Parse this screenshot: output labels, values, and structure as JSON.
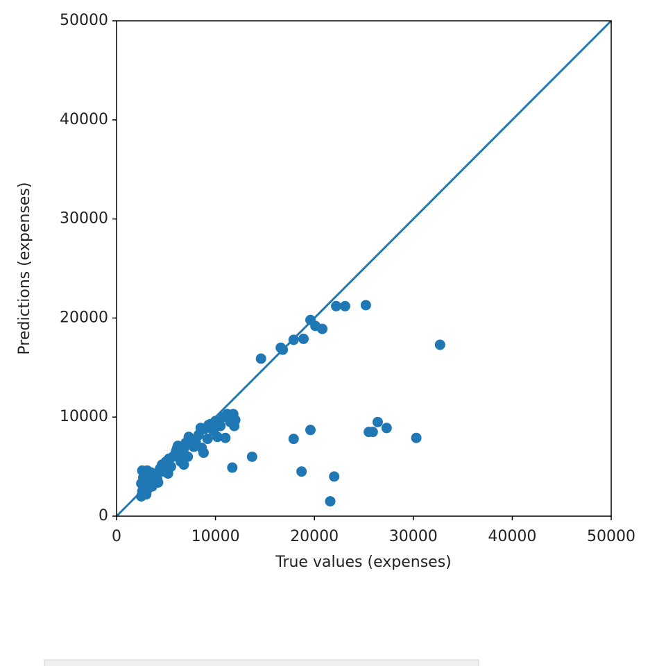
{
  "chart_data": {
    "type": "scatter",
    "xlabel": "True values (expenses)",
    "ylabel": "Predictions (expenses)",
    "color": "#1f77b4",
    "x": [
      32700,
      25200,
      23100,
      22200,
      20800,
      20100,
      19600,
      18900,
      17900,
      16600,
      16800,
      14600,
      30300,
      27300,
      26400,
      25900,
      25500,
      19600,
      17900,
      18700,
      22000,
      21600,
      13700,
      11700,
      2500,
      2600,
      2700,
      2800,
      2900,
      2600,
      3000,
      3200,
      3300,
      3500,
      3600,
      3800,
      4000,
      4200,
      4400,
      4600,
      4800,
      5000,
      5200,
      5500,
      5700,
      6000,
      6200,
      6500,
      6800,
      6800,
      7000,
      7200,
      7500,
      7800,
      8000,
      8300,
      8600,
      8800,
      8900,
      9200,
      9500,
      9800,
      10000,
      10200,
      10500,
      11000,
      11200,
      11500,
      11800,
      12000,
      11900,
      10800,
      9300,
      7300,
      6300,
      5300,
      4100,
      3100,
      2500,
      2700,
      8500,
      7700,
      6100
    ],
    "y": [
      17300,
      21300,
      21200,
      21200,
      18900,
      19200,
      19800,
      17900,
      17800,
      17000,
      16800,
      15900,
      7900,
      8900,
      9500,
      8500,
      8500,
      8700,
      7800,
      4500,
      4000,
      1500,
      6000,
      4900,
      2000,
      2500,
      3000,
      3500,
      4000,
      4600,
      2200,
      2800,
      3800,
      4400,
      3000,
      3600,
      4200,
      3400,
      4800,
      5200,
      4500,
      5500,
      4300,
      5000,
      6000,
      6500,
      7100,
      5500,
      5200,
      6800,
      7400,
      6000,
      7800,
      7000,
      7500,
      8200,
      6900,
      6400,
      8800,
      7800,
      9300,
      8600,
      9600,
      8000,
      9100,
      7900,
      10300,
      9500,
      10300,
      9700,
      9100,
      10000,
      9200,
      8000,
      6300,
      5800,
      3800,
      4600,
      3300,
      3900,
      8900,
      7400,
      6800
    ],
    "line": {
      "x": [
        0,
        50000
      ],
      "y": [
        0,
        50000
      ],
      "color": "#1f77b4"
    },
    "xlim": [
      0,
      50000
    ],
    "ylim": [
      0,
      50000
    ],
    "xticks": [
      0,
      10000,
      20000,
      30000,
      40000,
      50000
    ],
    "yticks": [
      0,
      10000,
      20000,
      30000,
      40000,
      50000
    ]
  }
}
